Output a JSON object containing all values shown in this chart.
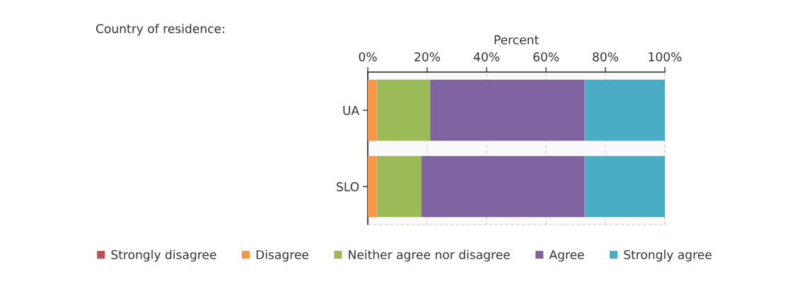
{
  "chart_data": {
    "type": "bar",
    "orientation": "horizontal",
    "stacked": true,
    "xlabel": "Percent",
    "annotations": [
      "Country of residence:"
    ],
    "categories": [
      "UA",
      "SLO"
    ],
    "series": [
      {
        "name": "Strongly disagree",
        "color": "#c0504d",
        "values": [
          0,
          0
        ]
      },
      {
        "name": "Disagree",
        "color": "#f79646",
        "values": [
          3,
          3
        ]
      },
      {
        "name": "Neither agree nor disagree",
        "color": "#9bbb59",
        "values": [
          18,
          15
        ]
      },
      {
        "name": "Agree",
        "color": "#8064a2",
        "values": [
          52,
          55
        ]
      },
      {
        "name": "Strongly agree",
        "color": "#4bacc6",
        "values": [
          27,
          27
        ]
      }
    ],
    "xlim": [
      0,
      100
    ],
    "xticks": [
      {
        "value": 0,
        "label": "0%"
      },
      {
        "value": 20,
        "label": "20%"
      },
      {
        "value": 40,
        "label": "40%"
      },
      {
        "value": 60,
        "label": "60%"
      },
      {
        "value": 80,
        "label": "80%"
      },
      {
        "value": 100,
        "label": "100%"
      }
    ],
    "grid": "x",
    "legend": "bottom"
  }
}
